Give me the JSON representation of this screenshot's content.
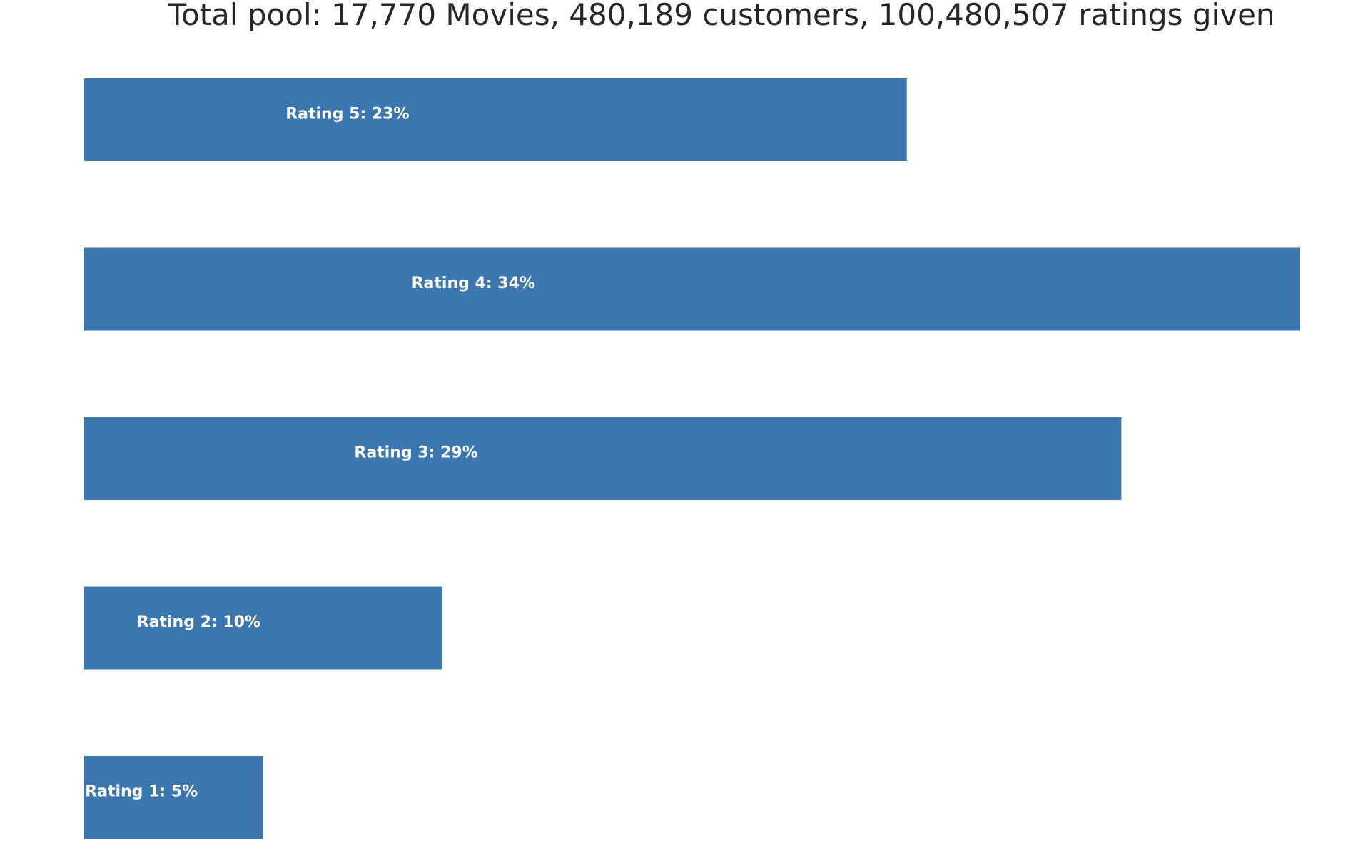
{
  "chart_data": {
    "type": "bar",
    "orientation": "horizontal",
    "title": "Total pool: 17,770 Movies, 480,189 customers, 100,480,507 ratings given",
    "xlabel": "",
    "ylabel": "",
    "grid": false,
    "axes_visible": false,
    "bar_color": "#3b76af",
    "label_color": "#ffffff",
    "xlim": [
      0,
      34
    ],
    "categories": [
      "5",
      "4",
      "3",
      "2",
      "1"
    ],
    "values": [
      23,
      34,
      29,
      10,
      5
    ],
    "labels": [
      "Rating 5: 23%",
      "Rating 4: 34%",
      "Rating 3: 29%",
      "Rating 2: 10%",
      "Rating 1: 5%"
    ]
  }
}
